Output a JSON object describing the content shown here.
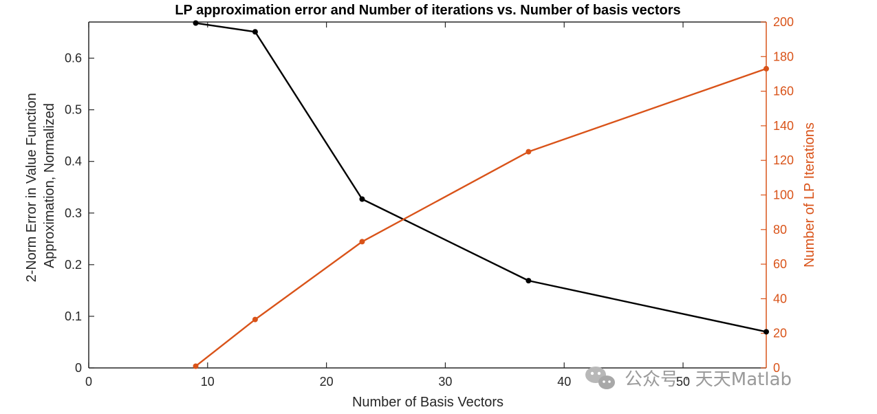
{
  "chart_data": {
    "type": "line",
    "title": "LP approximation error and Number of iterations vs. Number of basis vectors",
    "xlabel": "Number of Basis Vectors",
    "ylabel_left": [
      "2-Norm Error in Value Function",
      "Approximation, Normalized"
    ],
    "ylabel_right": "Number of LP Iterations",
    "xlim": [
      0,
      57
    ],
    "ylim_left": [
      0,
      0.67
    ],
    "ylim_right": [
      0,
      200
    ],
    "x_ticks": [
      "0",
      "10",
      "20",
      "30",
      "40",
      "50"
    ],
    "y_left_ticks": [
      "0",
      "0.1",
      "0.2",
      "0.3",
      "0.4",
      "0.5",
      "0.6"
    ],
    "y_right_ticks": [
      "0",
      "20",
      "40",
      "60",
      "80",
      "100",
      "120",
      "140",
      "160",
      "180",
      "200"
    ],
    "x": [
      9,
      14,
      23,
      37,
      57
    ],
    "series": [
      {
        "axis": "left",
        "color": "#000000",
        "values": [
          0.668,
          0.651,
          0.327,
          0.169,
          0.07
        ]
      },
      {
        "axis": "right",
        "color": "#D95319",
        "values": [
          1,
          28,
          73,
          125,
          173
        ]
      }
    ],
    "grid": false
  },
  "watermark": {
    "text": "公众号 · 天天Matlab",
    "icon": "wechat-icon"
  }
}
